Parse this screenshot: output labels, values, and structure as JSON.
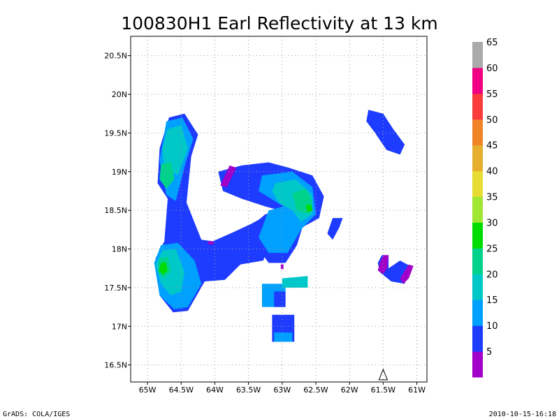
{
  "chart_data": {
    "type": "heatmap",
    "title": "100830H1 Earl Reflectivity at 13 km",
    "xlim": [
      -65.25,
      -60.85
    ],
    "ylim": [
      16.28,
      20.75
    ],
    "x_ticks": [
      {
        "value": -65.0,
        "label": "65W"
      },
      {
        "value": -64.5,
        "label": "64.5W"
      },
      {
        "value": -64.0,
        "label": "64W"
      },
      {
        "value": -63.5,
        "label": "63.5W"
      },
      {
        "value": -63.0,
        "label": "63W"
      },
      {
        "value": -62.5,
        "label": "62.5W"
      },
      {
        "value": -62.0,
        "label": "62W"
      },
      {
        "value": -61.5,
        "label": "61.5W"
      },
      {
        "value": -61.0,
        "label": "61W"
      }
    ],
    "y_ticks": [
      {
        "value": 16.5,
        "label": "16.5N"
      },
      {
        "value": 17.0,
        "label": "17N"
      },
      {
        "value": 17.5,
        "label": "17.5N"
      },
      {
        "value": 18.0,
        "label": "18N"
      },
      {
        "value": 18.5,
        "label": "18.5N"
      },
      {
        "value": 19.0,
        "label": "19N"
      },
      {
        "value": 19.5,
        "label": "19.5N"
      },
      {
        "value": 20.0,
        "label": "20N"
      },
      {
        "value": 20.5,
        "label": "20.5N"
      }
    ],
    "grid": true,
    "colorbar": {
      "placement": "right",
      "colors": [
        "#a000c8",
        "#1e3cff",
        "#00a0ff",
        "#00c8c8",
        "#00d28c",
        "#00dc00",
        "#a0e632",
        "#e6dc32",
        "#e6af2d",
        "#f08228",
        "#fa3c3c",
        "#f00082",
        "#aaaaaa"
      ],
      "labels": [
        "5",
        "10",
        "15",
        "20",
        "25",
        "30",
        "35",
        "40",
        "45",
        "50",
        "55",
        "60",
        "65"
      ]
    },
    "regions": [
      {
        "color_index": 1,
        "polygon": [
          [
            -64.68,
            19.7
          ],
          [
            -64.45,
            19.75
          ],
          [
            -64.25,
            19.48
          ],
          [
            -64.35,
            19.2
          ],
          [
            -64.42,
            18.6
          ],
          [
            -64.2,
            18.12
          ],
          [
            -64.03,
            18.1
          ],
          [
            -63.72,
            18.22
          ],
          [
            -63.45,
            18.33
          ],
          [
            -63.2,
            18.45
          ],
          [
            -63.08,
            18.3
          ],
          [
            -63.28,
            17.85
          ],
          [
            -63.62,
            17.8
          ],
          [
            -63.85,
            17.6
          ],
          [
            -64.15,
            17.58
          ],
          [
            -64.4,
            17.2
          ],
          [
            -64.62,
            17.18
          ],
          [
            -64.82,
            17.4
          ],
          [
            -64.88,
            17.88
          ],
          [
            -64.75,
            18.1
          ],
          [
            -64.7,
            18.65
          ],
          [
            -64.85,
            18.85
          ],
          [
            -64.82,
            19.3
          ]
        ]
      },
      {
        "color_index": 2,
        "polygon": [
          [
            -64.72,
            19.65
          ],
          [
            -64.48,
            19.7
          ],
          [
            -64.32,
            19.42
          ],
          [
            -64.44,
            19.1
          ],
          [
            -64.58,
            18.62
          ],
          [
            -64.72,
            18.7
          ],
          [
            -64.82,
            19.15
          ]
        ]
      },
      {
        "color_index": 3,
        "polygon": [
          [
            -64.7,
            19.55
          ],
          [
            -64.5,
            19.6
          ],
          [
            -64.4,
            19.3
          ],
          [
            -64.55,
            18.95
          ],
          [
            -64.75,
            19.05
          ],
          [
            -64.78,
            19.3
          ]
        ]
      },
      {
        "color_index": 4,
        "polygon": [
          [
            -64.8,
            19.1
          ],
          [
            -64.65,
            19.12
          ],
          [
            -64.6,
            18.9
          ],
          [
            -64.72,
            18.78
          ],
          [
            -64.82,
            18.9
          ]
        ]
      },
      {
        "color_index": 2,
        "polygon": [
          [
            -64.8,
            18.05
          ],
          [
            -64.55,
            18.08
          ],
          [
            -64.3,
            17.85
          ],
          [
            -64.2,
            17.55
          ],
          [
            -64.4,
            17.25
          ],
          [
            -64.6,
            17.22
          ],
          [
            -64.82,
            17.4
          ],
          [
            -64.9,
            17.82
          ]
        ]
      },
      {
        "color_index": 3,
        "polygon": [
          [
            -64.78,
            17.98
          ],
          [
            -64.58,
            18.0
          ],
          [
            -64.45,
            17.7
          ],
          [
            -64.5,
            17.45
          ],
          [
            -64.65,
            17.4
          ],
          [
            -64.8,
            17.55
          ],
          [
            -64.88,
            17.8
          ]
        ]
      },
      {
        "color_index": 4,
        "polygon": [
          [
            -64.82,
            17.88
          ],
          [
            -64.7,
            17.9
          ],
          [
            -64.65,
            17.72
          ],
          [
            -64.75,
            17.62
          ],
          [
            -64.85,
            17.7
          ]
        ]
      },
      {
        "color_index": 5,
        "polygon": [
          [
            -64.8,
            17.82
          ],
          [
            -64.73,
            17.83
          ],
          [
            -64.7,
            17.72
          ],
          [
            -64.77,
            17.67
          ],
          [
            -64.83,
            17.72
          ]
        ]
      },
      {
        "color_index": 1,
        "polygon": [
          [
            -63.95,
            19.0
          ],
          [
            -63.6,
            19.08
          ],
          [
            -63.2,
            19.12
          ],
          [
            -62.9,
            19.05
          ],
          [
            -62.55,
            18.95
          ],
          [
            -62.38,
            18.68
          ],
          [
            -62.45,
            18.4
          ],
          [
            -62.7,
            18.28
          ],
          [
            -62.78,
            18.05
          ],
          [
            -62.95,
            17.82
          ],
          [
            -63.2,
            17.82
          ],
          [
            -63.35,
            18.0
          ],
          [
            -63.45,
            18.3
          ],
          [
            -63.25,
            18.45
          ],
          [
            -62.95,
            18.48
          ],
          [
            -63.25,
            18.55
          ],
          [
            -63.6,
            18.65
          ],
          [
            -63.88,
            18.75
          ]
        ]
      },
      {
        "color_index": 2,
        "polygon": [
          [
            -63.3,
            18.95
          ],
          [
            -62.85,
            19.0
          ],
          [
            -62.55,
            18.8
          ],
          [
            -62.5,
            18.45
          ],
          [
            -62.72,
            18.25
          ],
          [
            -62.92,
            17.95
          ],
          [
            -63.2,
            17.95
          ],
          [
            -63.35,
            18.15
          ],
          [
            -63.2,
            18.5
          ],
          [
            -62.98,
            18.55
          ],
          [
            -63.35,
            18.75
          ]
        ]
      },
      {
        "color_index": 3,
        "polygon": [
          [
            -63.1,
            18.85
          ],
          [
            -62.8,
            18.9
          ],
          [
            -62.55,
            18.7
          ],
          [
            -62.55,
            18.45
          ],
          [
            -62.72,
            18.35
          ],
          [
            -62.85,
            18.5
          ],
          [
            -63.05,
            18.6
          ],
          [
            -63.15,
            18.75
          ]
        ]
      },
      {
        "color_index": 4,
        "polygon": [
          [
            -62.85,
            18.72
          ],
          [
            -62.65,
            18.78
          ],
          [
            -62.55,
            18.6
          ],
          [
            -62.62,
            18.45
          ],
          [
            -62.78,
            18.5
          ]
        ]
      },
      {
        "color_index": 5,
        "polygon": [
          [
            -62.65,
            18.57
          ],
          [
            -62.57,
            18.57
          ],
          [
            -62.55,
            18.5
          ],
          [
            -62.62,
            18.47
          ]
        ]
      },
      {
        "color_index": 0,
        "polygon": [
          [
            -63.92,
            18.82
          ],
          [
            -63.78,
            19.08
          ],
          [
            -63.68,
            19.05
          ],
          [
            -63.82,
            18.8
          ]
        ]
      },
      {
        "color_index": 0,
        "polygon": [
          [
            -64.1,
            18.1
          ],
          [
            -64.02,
            18.1
          ],
          [
            -64.02,
            18.06
          ],
          [
            -64.1,
            18.06
          ]
        ]
      },
      {
        "color_index": 0,
        "polygon": [
          [
            -63.02,
            17.8
          ],
          [
            -62.98,
            17.8
          ],
          [
            -62.98,
            17.74
          ],
          [
            -63.02,
            17.74
          ]
        ]
      },
      {
        "color_index": 1,
        "polygon": [
          [
            -62.25,
            18.4
          ],
          [
            -62.1,
            18.4
          ],
          [
            -62.15,
            18.28
          ],
          [
            -62.25,
            18.12
          ],
          [
            -62.33,
            18.2
          ]
        ]
      },
      {
        "color_index": 1,
        "polygon": [
          [
            -61.72,
            19.8
          ],
          [
            -61.5,
            19.75
          ],
          [
            -61.35,
            19.55
          ],
          [
            -61.18,
            19.35
          ],
          [
            -61.25,
            19.22
          ],
          [
            -61.45,
            19.28
          ],
          [
            -61.62,
            19.5
          ],
          [
            -61.75,
            19.65
          ]
        ]
      },
      {
        "color_index": 1,
        "polygon": [
          [
            -61.52,
            17.92
          ],
          [
            -61.42,
            17.92
          ],
          [
            -61.42,
            17.75
          ],
          [
            -61.25,
            17.85
          ],
          [
            -61.1,
            17.78
          ],
          [
            -61.18,
            17.55
          ],
          [
            -61.38,
            17.58
          ],
          [
            -61.55,
            17.7
          ],
          [
            -61.58,
            17.82
          ]
        ]
      },
      {
        "color_index": 0,
        "polygon": [
          [
            -61.5,
            17.92
          ],
          [
            -61.42,
            17.92
          ],
          [
            -61.44,
            17.75
          ],
          [
            -61.5,
            17.68
          ],
          [
            -61.58,
            17.72
          ],
          [
            -61.55,
            17.82
          ]
        ]
      },
      {
        "color_index": 0,
        "polygon": [
          [
            -61.12,
            17.8
          ],
          [
            -61.05,
            17.78
          ],
          [
            -61.12,
            17.62
          ],
          [
            -61.2,
            17.55
          ],
          [
            -61.25,
            17.62
          ]
        ]
      },
      {
        "color_index": 2,
        "polygon": [
          [
            -63.3,
            17.55
          ],
          [
            -62.95,
            17.55
          ],
          [
            -62.95,
            17.25
          ],
          [
            -63.3,
            17.25
          ]
        ]
      },
      {
        "color_index": 1,
        "polygon": [
          [
            -63.12,
            17.45
          ],
          [
            -62.95,
            17.45
          ],
          [
            -62.95,
            17.25
          ],
          [
            -63.12,
            17.25
          ]
        ]
      },
      {
        "color_index": 3,
        "polygon": [
          [
            -63.0,
            17.62
          ],
          [
            -62.62,
            17.65
          ],
          [
            -62.62,
            17.5
          ],
          [
            -63.0,
            17.5
          ]
        ]
      },
      {
        "color_index": 1,
        "polygon": [
          [
            -63.15,
            17.15
          ],
          [
            -62.82,
            17.15
          ],
          [
            -62.82,
            16.8
          ],
          [
            -63.15,
            16.8
          ]
        ]
      },
      {
        "color_index": 2,
        "polygon": [
          [
            -63.12,
            16.92
          ],
          [
            -62.85,
            16.92
          ],
          [
            -62.85,
            16.8
          ],
          [
            -63.12,
            16.8
          ]
        ]
      }
    ],
    "annotations": [
      {
        "shape": "triangle-outline",
        "x": -61.5,
        "y": 16.38
      }
    ]
  },
  "footer": {
    "left": "GrADS: COLA/IGES",
    "right": "2010-10-15-16:18"
  }
}
